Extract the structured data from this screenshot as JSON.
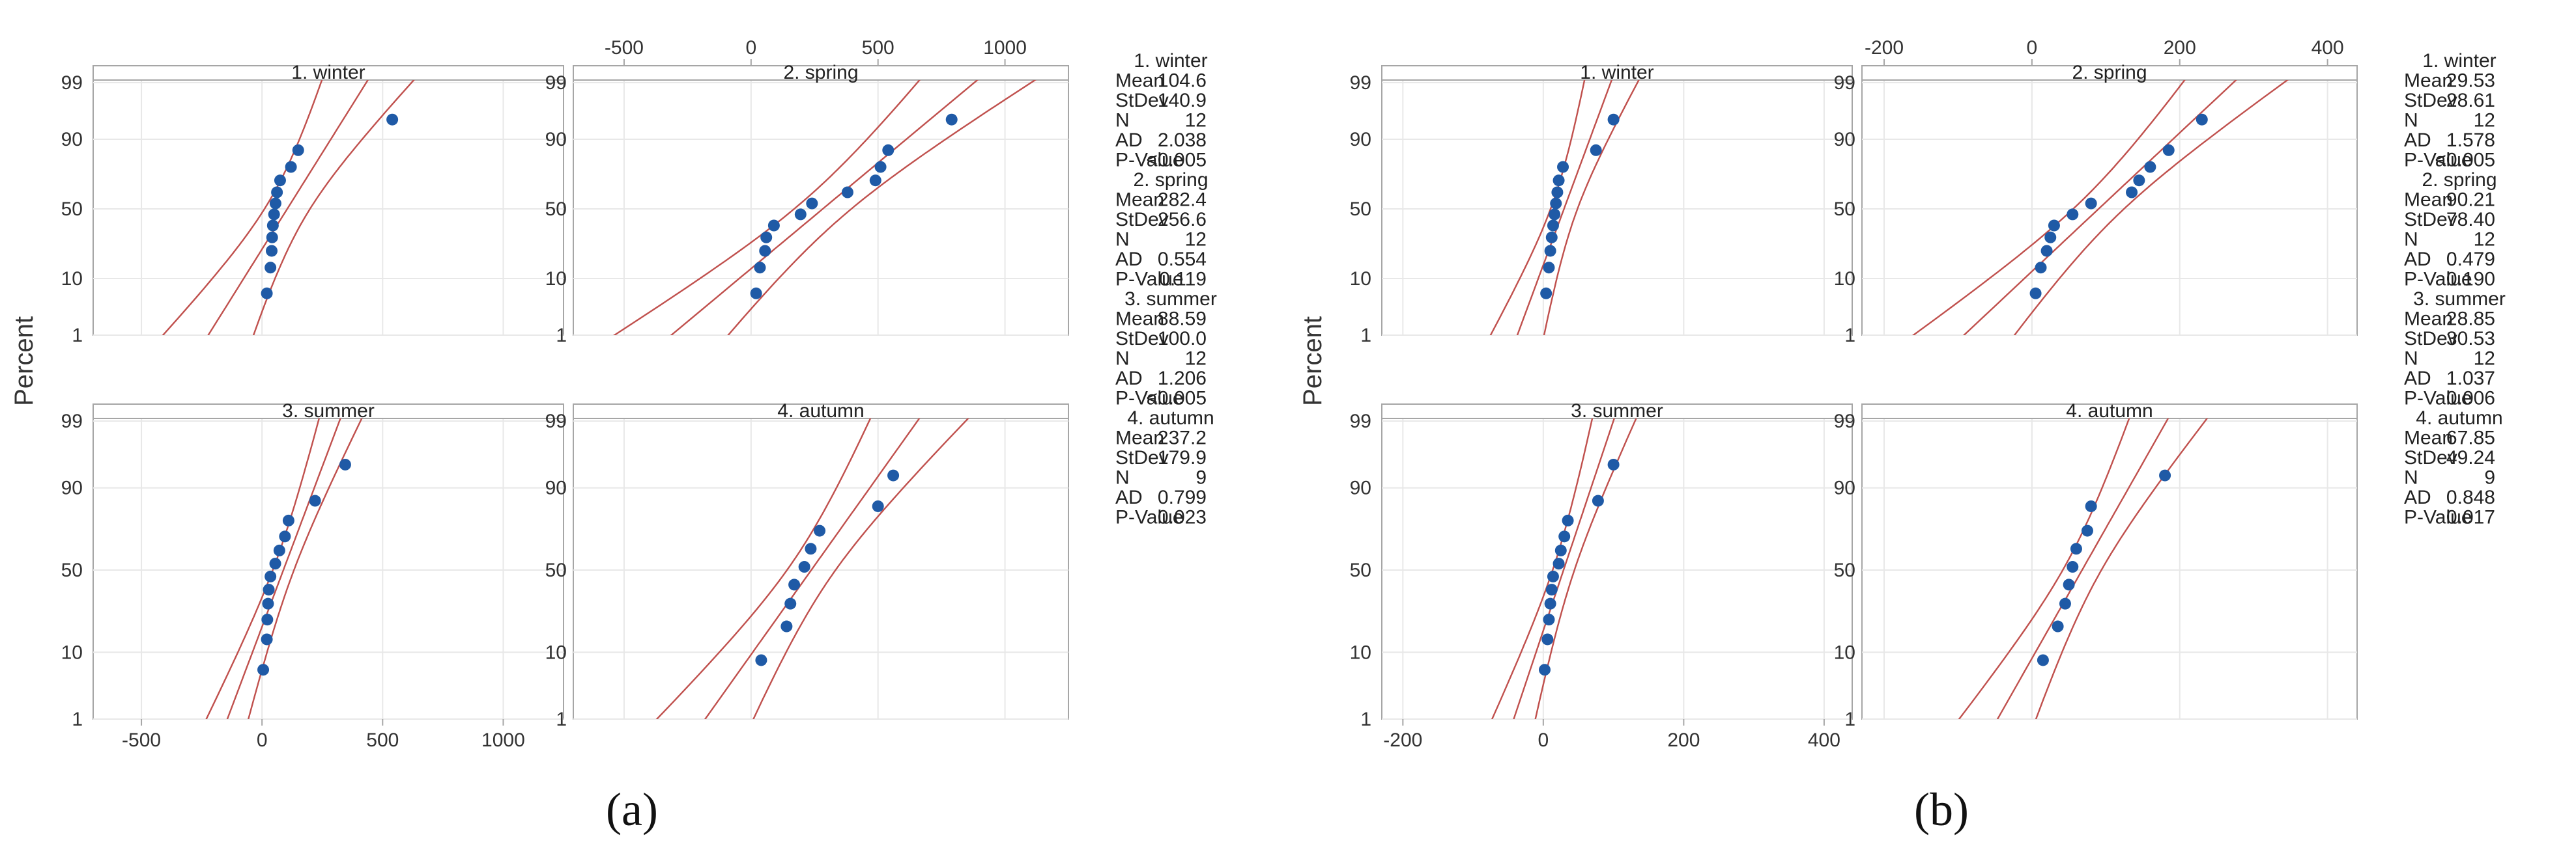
{
  "colors": {
    "point": "#1f5aa6",
    "ci_line": "#c0504d",
    "frame": "#a6a6a6",
    "grid": "#e8e8e8",
    "title_bar": "#a6a6a6"
  },
  "subfigure_labels": [
    "(a)",
    "(b)"
  ],
  "chart_data": [
    {
      "type": "scatter",
      "subtype": "probability-plot",
      "label": "(a)",
      "ylabel": "Percent",
      "y_ticks": [
        1,
        10,
        50,
        90,
        99
      ],
      "bottom_x_ticks": [
        "-500",
        "0",
        "500",
        "1000"
      ],
      "top_x_ticks": [
        "-500",
        "0",
        "500",
        "1000"
      ],
      "xlim_left": [
        -700,
        1250
      ],
      "xlim_right": [
        -700,
        1250
      ],
      "tick_values": [
        -500,
        0,
        500,
        1000
      ],
      "panels": [
        {
          "title": "1. winter",
          "mean": 104.6,
          "sd": 140.9,
          "band": 1.45,
          "points": [
            [
              20,
              6
            ],
            [
              35,
              14
            ],
            [
              40,
              22
            ],
            [
              42,
              30
            ],
            [
              45,
              38
            ],
            [
              50,
              46
            ],
            [
              56,
              54
            ],
            [
              62,
              62
            ],
            [
              75,
              70
            ],
            [
              120,
              78
            ],
            [
              150,
              86
            ],
            [
              540,
              95
            ]
          ]
        },
        {
          "title": "2. spring",
          "mean": 282.4,
          "sd": 256.6,
          "band": 0.95,
          "points": [
            [
              20,
              6
            ],
            [
              35,
              14
            ],
            [
              55,
              22
            ],
            [
              60,
              30
            ],
            [
              90,
              38
            ],
            [
              195,
              46
            ],
            [
              240,
              54
            ],
            [
              380,
              62
            ],
            [
              490,
              70
            ],
            [
              510,
              78
            ],
            [
              540,
              86
            ],
            [
              790,
              95
            ]
          ]
        },
        {
          "title": "3. summer",
          "mean": 88.59,
          "sd": 100.0,
          "band": 0.95,
          "points": [
            [
              5,
              6
            ],
            [
              20,
              14
            ],
            [
              22,
              22
            ],
            [
              25,
              30
            ],
            [
              28,
              38
            ],
            [
              35,
              46
            ],
            [
              55,
              54
            ],
            [
              72,
              62
            ],
            [
              95,
              70
            ],
            [
              110,
              78
            ],
            [
              220,
              86
            ],
            [
              345,
              95
            ]
          ]
        },
        {
          "title": "4. autumn",
          "mean": 237.2,
          "sd": 179.9,
          "band": 1.15,
          "points": [
            [
              40,
              8
            ],
            [
              140,
              19
            ],
            [
              155,
              30
            ],
            [
              170,
              41
            ],
            [
              210,
              52
            ],
            [
              235,
              63
            ],
            [
              270,
              73
            ],
            [
              500,
              84
            ],
            [
              560,
              93
            ]
          ]
        }
      ],
      "stats": [
        {
          "title": "1. winter",
          "mean": "104.6",
          "stdev": "140.9",
          "n": "12",
          "ad": "2.038",
          "p": "<0.005"
        },
        {
          "title": "2. spring",
          "mean": "282.4",
          "stdev": "256.6",
          "n": "12",
          "ad": "0.554",
          "p": "0.119"
        },
        {
          "title": "3. summer",
          "mean": "88.59",
          "stdev": "100.0",
          "n": "12",
          "ad": "1.206",
          "p": "<0.005"
        },
        {
          "title": "4. autumn",
          "mean": "237.2",
          "stdev": "179.9",
          "n": "9",
          "ad": "0.799",
          "p": "0.023"
        }
      ]
    },
    {
      "type": "scatter",
      "subtype": "probability-plot",
      "label": "(b)",
      "ylabel": "Percent",
      "y_ticks": [
        1,
        10,
        50,
        90,
        99
      ],
      "bottom_x_ticks": [
        "-200",
        "0",
        "200",
        "400"
      ],
      "top_x_ticks": [
        "-200",
        "0",
        "200",
        "400"
      ],
      "xlim_left": [
        -230,
        440
      ],
      "xlim_right": [
        -230,
        440
      ],
      "tick_values": [
        -200,
        0,
        200,
        400
      ],
      "panels": [
        {
          "title": "1. winter",
          "mean": 29.53,
          "sd": 28.61,
          "band": 1.45,
          "points": [
            [
              4,
              6
            ],
            [
              8,
              14
            ],
            [
              10,
              22
            ],
            [
              12,
              30
            ],
            [
              14,
              38
            ],
            [
              16,
              46
            ],
            [
              18,
              54
            ],
            [
              20,
              62
            ],
            [
              22,
              70
            ],
            [
              28,
              78
            ],
            [
              75,
              86
            ],
            [
              100,
              95
            ]
          ]
        },
        {
          "title": "2. spring",
          "mean": 90.21,
          "sd": 78.4,
          "band": 0.95,
          "points": [
            [
              5,
              6
            ],
            [
              12,
              14
            ],
            [
              20,
              22
            ],
            [
              25,
              30
            ],
            [
              30,
              38
            ],
            [
              55,
              46
            ],
            [
              80,
              54
            ],
            [
              135,
              62
            ],
            [
              145,
              70
            ],
            [
              160,
              78
            ],
            [
              185,
              86
            ],
            [
              230,
              95
            ]
          ]
        },
        {
          "title": "3. summer",
          "mean": 28.85,
          "sd": 30.53,
          "band": 1.1,
          "points": [
            [
              2,
              6
            ],
            [
              6,
              14
            ],
            [
              8,
              22
            ],
            [
              10,
              30
            ],
            [
              12,
              38
            ],
            [
              14,
              46
            ],
            [
              22,
              54
            ],
            [
              25,
              62
            ],
            [
              30,
              70
            ],
            [
              35,
              78
            ],
            [
              78,
              86
            ],
            [
              100,
              95
            ]
          ]
        },
        {
          "title": "4. autumn",
          "mean": 67.85,
          "sd": 49.24,
          "band": 1.15,
          "points": [
            [
              15,
              8
            ],
            [
              35,
              19
            ],
            [
              45,
              30
            ],
            [
              50,
              41
            ],
            [
              55,
              52
            ],
            [
              60,
              63
            ],
            [
              75,
              73
            ],
            [
              80,
              84
            ],
            [
              180,
              93
            ]
          ]
        }
      ],
      "stats": [
        {
          "title": "1. winter",
          "mean": "29.53",
          "stdev": "28.61",
          "n": "12",
          "ad": "1.578",
          "p": "<0.005"
        },
        {
          "title": "2. spring",
          "mean": "90.21",
          "stdev": "78.40",
          "n": "12",
          "ad": "0.479",
          "p": "0.190"
        },
        {
          "title": "3. summer",
          "mean": "28.85",
          "stdev": "30.53",
          "n": "12",
          "ad": "1.037",
          "p": "0.006"
        },
        {
          "title": "4. autumn",
          "mean": "67.85",
          "stdev": "49.24",
          "n": "9",
          "ad": "0.848",
          "p": "0.017"
        }
      ]
    }
  ],
  "stat_labels": {
    "mean": "Mean",
    "stdev": "StDev",
    "n": "N",
    "ad": "AD",
    "p": "P-Value"
  }
}
